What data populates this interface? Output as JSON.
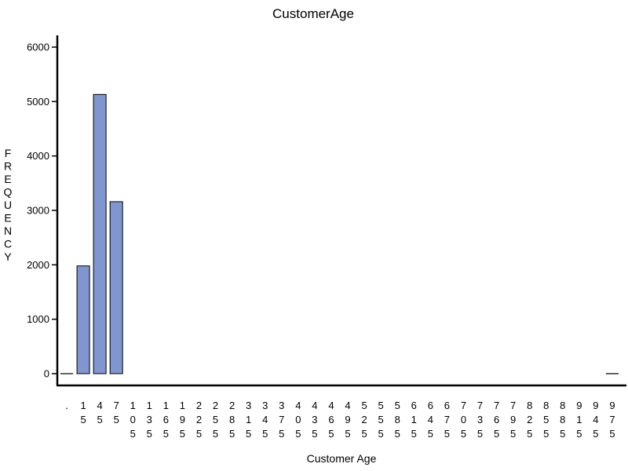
{
  "chart_data": {
    "type": "bar",
    "title": "CustomerAge",
    "xlabel": "Customer Age",
    "ylabel": "FREQUENCY",
    "ylim": [
      0,
      6000
    ],
    "yticks": [
      "0",
      "1000",
      "2000",
      "3000",
      "4000",
      "5000",
      "6000"
    ],
    "grid": false,
    "categories": [
      ".",
      "15",
      "45",
      "75",
      "105",
      "135",
      "165",
      "195",
      "225",
      "255",
      "285",
      "315",
      "345",
      "375",
      "405",
      "435",
      "465",
      "495",
      "525",
      "555",
      "585",
      "615",
      "645",
      "675",
      "705",
      "735",
      "765",
      "795",
      "825",
      "855",
      "885",
      "915",
      "945",
      "975"
    ],
    "values": [
      3,
      1980,
      5130,
      3160,
      0,
      0,
      0,
      0,
      0,
      0,
      0,
      0,
      0,
      0,
      0,
      0,
      0,
      0,
      0,
      0,
      0,
      0,
      0,
      0,
      0,
      0,
      0,
      0,
      0,
      0,
      0,
      0,
      0,
      2
    ]
  }
}
